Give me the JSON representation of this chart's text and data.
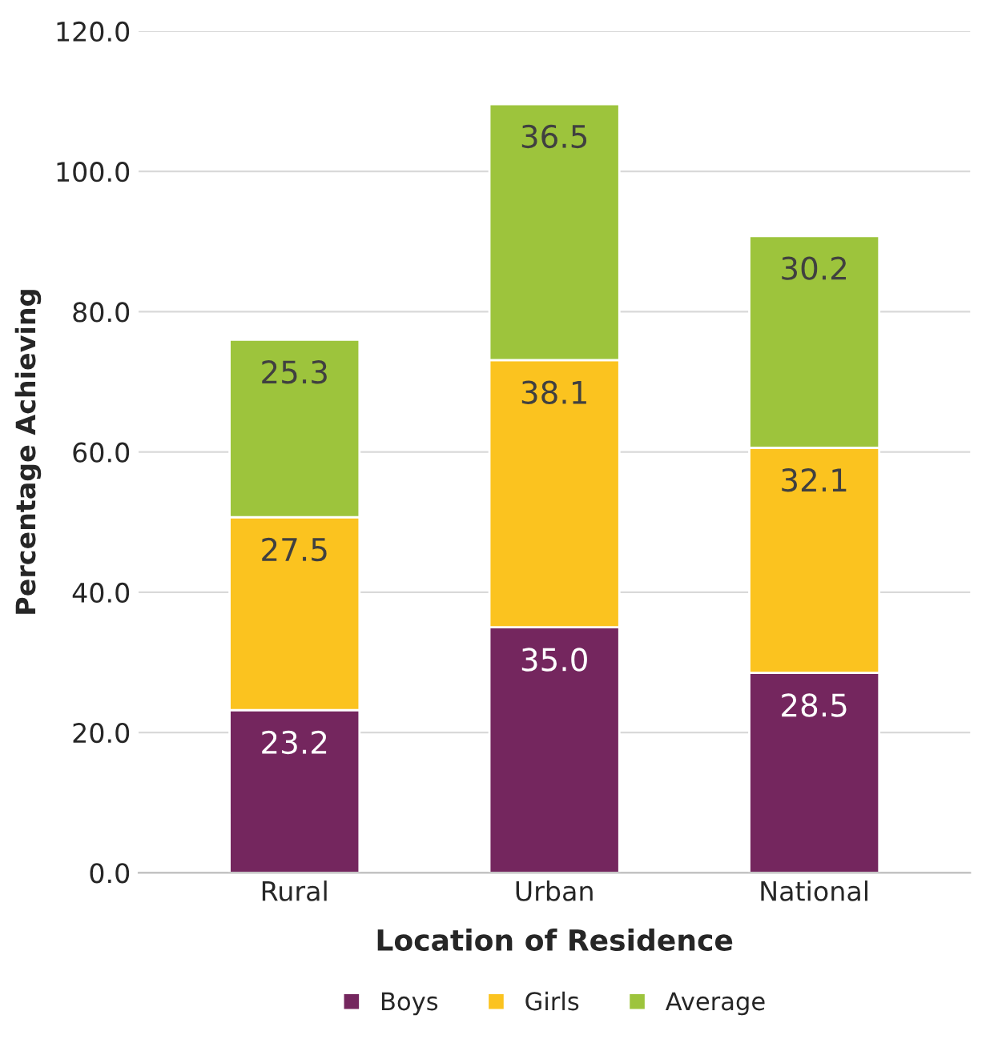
{
  "chart_data": {
    "type": "bar",
    "stacked": true,
    "xlabel": "Location of Residence",
    "ylabel": "Percentage Achieving",
    "categories": [
      "Rural",
      "Urban",
      "National"
    ],
    "series": [
      {
        "name": "Boys",
        "color": "#74265e",
        "values": [
          23.2,
          35.0,
          28.5
        ],
        "value_labels": [
          "23.2",
          "35.0",
          "28.5"
        ]
      },
      {
        "name": "Girls",
        "color": "#fbc31f",
        "values": [
          27.5,
          38.1,
          32.1
        ],
        "value_labels": [
          "27.5",
          "38.1",
          "32.1"
        ]
      },
      {
        "name": "Average",
        "color": "#9dc43c",
        "values": [
          25.3,
          36.5,
          30.2
        ],
        "value_labels": [
          "25.3",
          "36.5",
          "30.2"
        ]
      }
    ],
    "ylim": [
      0,
      120
    ],
    "yticks": [
      {
        "value": 0,
        "label": "0.0"
      },
      {
        "value": 20,
        "label": "20.0"
      },
      {
        "value": 40,
        "label": "40.0"
      },
      {
        "value": 60,
        "label": "60.0"
      },
      {
        "value": 80,
        "label": "80.0"
      },
      {
        "value": 100,
        "label": "100.0"
      },
      {
        "value": 120,
        "label": "120.0"
      }
    ],
    "grid": "y",
    "legend": "bottom"
  }
}
